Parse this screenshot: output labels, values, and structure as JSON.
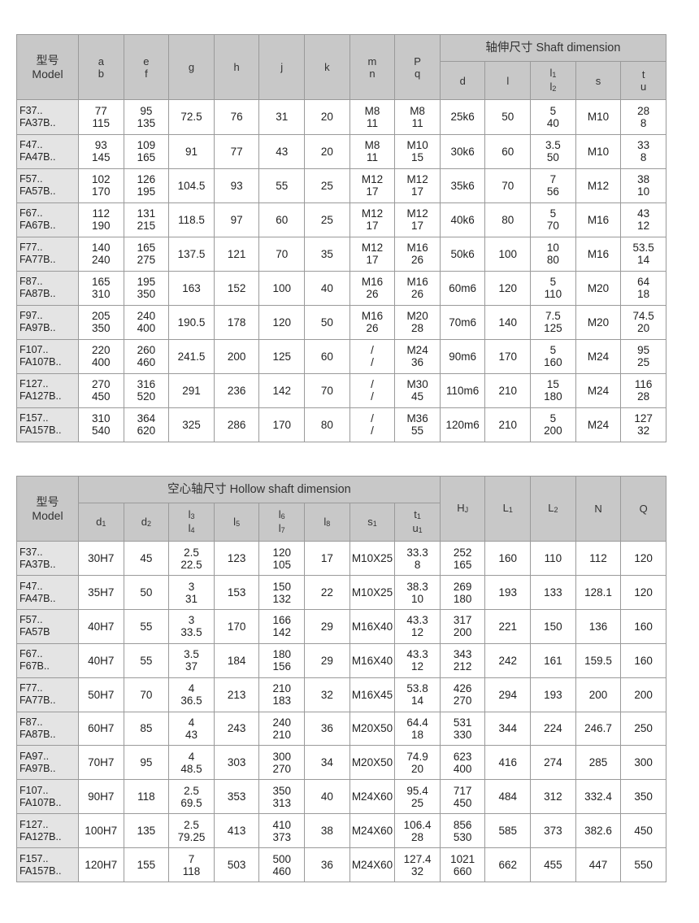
{
  "table1": {
    "model_header": "型号\nModel",
    "group_header": "轴伸尺寸  Shaft dimension",
    "columns": [
      [
        [
          "a",
          ""
        ],
        [
          "b",
          ""
        ]
      ],
      [
        [
          "e",
          ""
        ],
        [
          "f",
          ""
        ]
      ],
      [
        [
          "g",
          ""
        ]
      ],
      [
        [
          "h",
          ""
        ]
      ],
      [
        [
          "j",
          ""
        ]
      ],
      [
        [
          "k",
          ""
        ]
      ],
      [
        [
          "m",
          ""
        ],
        [
          "n",
          ""
        ]
      ],
      [
        [
          "P",
          ""
        ],
        [
          "q",
          ""
        ]
      ]
    ],
    "group_columns": [
      [
        [
          "d",
          ""
        ]
      ],
      [
        [
          "l",
          ""
        ]
      ],
      [
        [
          "l",
          "1"
        ],
        [
          "l",
          "2"
        ]
      ],
      [
        [
          "s",
          ""
        ]
      ],
      [
        [
          "t",
          ""
        ],
        [
          "u",
          ""
        ]
      ]
    ],
    "rows": [
      [
        "F37..\nFA37B..",
        "77\n115",
        "95\n135",
        "72.5",
        "76",
        "31",
        "20",
        "M8\n11",
        "M8\n11",
        "25k6",
        "50",
        "5\n40",
        "M10",
        "28\n8"
      ],
      [
        "F47..\nFA47B..",
        "93\n145",
        "109\n165",
        "91",
        "77",
        "43",
        "20",
        "M8\n11",
        "M10\n15",
        "30k6",
        "60",
        "3.5\n50",
        "M10",
        "33\n8"
      ],
      [
        "F57..\nFA57B..",
        "102\n170",
        "126\n195",
        "104.5",
        "93",
        "55",
        "25",
        "M12\n17",
        "M12\n17",
        "35k6",
        "70",
        "7\n56",
        "M12",
        "38\n10"
      ],
      [
        "F67..\nFA67B..",
        "112\n190",
        "131\n215",
        "118.5",
        "97",
        "60",
        "25",
        "M12\n17",
        "M12\n17",
        "40k6",
        "80",
        "5\n70",
        "M16",
        "43\n12"
      ],
      [
        "F77..\nFA77B..",
        "140\n240",
        "165\n275",
        "137.5",
        "121",
        "70",
        "35",
        "M12\n17",
        "M16\n26",
        "50k6",
        "100",
        "10\n80",
        "M16",
        "53.5\n14"
      ],
      [
        "F87..\nFA87B..",
        "165\n310",
        "195\n350",
        "163",
        "152",
        "100",
        "40",
        "M16\n26",
        "M16\n26",
        "60m6",
        "120",
        "5\n110",
        "M20",
        "64\n18"
      ],
      [
        "F97..\nFA97B..",
        "205\n350",
        "240\n400",
        "190.5",
        "178",
        "120",
        "50",
        "M16\n26",
        "M20\n28",
        "70m6",
        "140",
        "7.5\n125",
        "M20",
        "74.5\n20"
      ],
      [
        "F107..\nFA107B..",
        "220\n400",
        "260\n460",
        "241.5",
        "200",
        "125",
        "60",
        "/\n/",
        "M24\n36",
        "90m6",
        "170",
        "5\n160",
        "M24",
        "95\n25"
      ],
      [
        "F127..\nFA127B..",
        "270\n450",
        "316\n520",
        "291",
        "236",
        "142",
        "70",
        "/\n/",
        "M30\n45",
        "110m6",
        "210",
        "15\n180",
        "M24",
        "116\n28"
      ],
      [
        "F157..\nFA157B..",
        "310\n540",
        "364\n620",
        "325",
        "286",
        "170",
        "80",
        "/\n/",
        "M36\n55",
        "120m6",
        "210",
        "5\n200",
        "M24",
        "127\n32"
      ]
    ]
  },
  "table2": {
    "model_header": "型号\nModel",
    "group_header": "空心轴尺寸  Hollow shaft dimension",
    "group_columns": [
      [
        [
          "d",
          "1"
        ]
      ],
      [
        [
          "d",
          "2"
        ]
      ],
      [
        [
          "l",
          "3"
        ],
        [
          "l",
          "4"
        ]
      ],
      [
        [
          "l",
          "5"
        ]
      ],
      [
        [
          "l",
          "6"
        ],
        [
          "l",
          "7"
        ]
      ],
      [
        [
          "l",
          "8"
        ]
      ],
      [
        [
          "s",
          "1"
        ]
      ],
      [
        [
          "t",
          "1"
        ],
        [
          "u",
          "1"
        ]
      ]
    ],
    "columns": [
      [
        [
          "H",
          "J"
        ]
      ],
      [
        [
          "L",
          "1"
        ]
      ],
      [
        [
          "L",
          "2"
        ]
      ],
      [
        [
          "N",
          ""
        ]
      ],
      [
        [
          "Q",
          ""
        ]
      ]
    ],
    "rows": [
      [
        "F37..\nFA37B..",
        "30H7",
        "45",
        "2.5\n22.5",
        "123",
        "120\n105",
        "17",
        "M10X25",
        "33.3\n8",
        "252\n165",
        "160",
        "110",
        "112",
        "120"
      ],
      [
        "F47..\nFA47B..",
        "35H7",
        "50",
        "3\n31",
        "153",
        "150\n132",
        "22",
        "M10X25",
        "38.3\n10",
        "269\n180",
        "193",
        "133",
        "128.1",
        "120"
      ],
      [
        "F57..\nFA57B",
        "40H7",
        "55",
        "3\n33.5",
        "170",
        "166\n142",
        "29",
        "M16X40",
        "43.3\n12",
        "317\n200",
        "221",
        "150",
        "136",
        "160"
      ],
      [
        "F67..\nF67B..",
        "40H7",
        "55",
        "3.5\n37",
        "184",
        "180\n156",
        "29",
        "M16X40",
        "43.3\n12",
        "343\n212",
        "242",
        "161",
        "159.5",
        "160"
      ],
      [
        "F77..\nFA77B..",
        "50H7",
        "70",
        "4\n36.5",
        "213",
        "210\n183",
        "32",
        "M16X45",
        "53.8\n14",
        "426\n270",
        "294",
        "193",
        "200",
        "200"
      ],
      [
        "F87..\nFA87B..",
        "60H7",
        "85",
        "4\n43",
        "243",
        "240\n210",
        "36",
        "M20X50",
        "64.4\n18",
        "531\n330",
        "344",
        "224",
        "246.7",
        "250"
      ],
      [
        "FA97..\nFA97B..",
        "70H7",
        "95",
        "4\n48.5",
        "303",
        "300\n270",
        "34",
        "M20X50",
        "74.9\n20",
        "623\n400",
        "416",
        "274",
        "285",
        "300"
      ],
      [
        "F107..\nFA107B..",
        "90H7",
        "118",
        "2.5\n69.5",
        "353",
        "350\n313",
        "40",
        "M24X60",
        "95.4\n25",
        "717\n450",
        "484",
        "312",
        "332.4",
        "350"
      ],
      [
        "F127..\nFA127B..",
        "100H7",
        "135",
        "2.5\n79.25",
        "413",
        "410\n373",
        "38",
        "M24X60",
        "106.4\n28",
        "856\n530",
        "585",
        "373",
        "382.6",
        "450"
      ],
      [
        "F157..\nFA157B..",
        "120H7",
        "155",
        "7\n118",
        "503",
        "500\n460",
        "36",
        "M24X60",
        "127.4\n32",
        "1021\n660",
        "662",
        "455",
        "447",
        "550"
      ]
    ]
  }
}
